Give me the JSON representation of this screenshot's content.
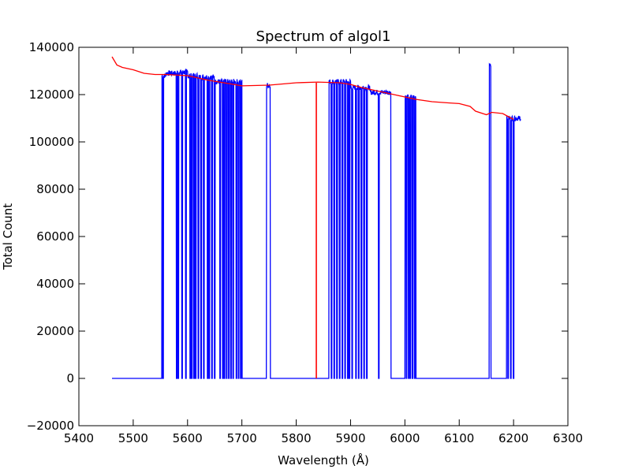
{
  "chart_data": {
    "type": "line",
    "title": "Spectrum of algol1",
    "xlabel": "Wavelength (Å)",
    "ylabel": "Total Count",
    "xlim": [
      5400,
      6300
    ],
    "ylim": [
      -20000,
      140000
    ],
    "xticks": [
      5400,
      5500,
      5600,
      5700,
      5800,
      5900,
      6000,
      6100,
      6200,
      6300
    ],
    "yticks": [
      -20000,
      0,
      20000,
      40000,
      60000,
      80000,
      100000,
      120000,
      140000
    ],
    "grid": false,
    "legend": "none",
    "colors": {
      "observed": "#0000ff",
      "fit": "#ff0000"
    },
    "series": [
      {
        "id": "observed",
        "color": "#0000ff",
        "segments": [
          [
            5461,
            5552,
            0
          ],
          [
            5552,
            5560,
            128000
          ],
          [
            5560,
            5580,
            129000
          ],
          [
            5580,
            5600,
            129500
          ],
          [
            5600,
            5620,
            128000
          ],
          [
            5620,
            5650,
            127500
          ],
          [
            5650,
            5700,
            125500
          ],
          [
            5700,
            5745,
            0
          ],
          [
            5745,
            5752,
            124000
          ],
          [
            5752,
            5860,
            0
          ],
          [
            5860,
            5900,
            125500
          ],
          [
            5900,
            5935,
            123000
          ],
          [
            5935,
            5975,
            121000
          ],
          [
            5975,
            6000,
            0
          ],
          [
            6000,
            6020,
            119000
          ],
          [
            6020,
            6155,
            0
          ],
          [
            6155,
            6158,
            133000
          ],
          [
            6158,
            6187,
            0
          ],
          [
            6187,
            6213,
            110000
          ]
        ],
        "gaps": [
          5552,
          5555,
          5580,
          5583,
          5590,
          5597,
          5605,
          5608,
          5612,
          5615,
          5620,
          5625,
          5630,
          5637,
          5640,
          5645,
          5650,
          5660,
          5665,
          5668,
          5672,
          5676,
          5680,
          5684,
          5690,
          5694,
          5698,
          5702,
          5865,
          5870,
          5875,
          5880,
          5885,
          5890,
          5895,
          5898,
          5903,
          5910,
          5915,
          5920,
          5925,
          5930,
          5952,
          5975,
          6003,
          6007,
          6010,
          6014,
          6018,
          6190,
          6195,
          6200
        ]
      },
      {
        "id": "fit",
        "color": "#ff0000",
        "x": [
          5461,
          5470,
          5480,
          5500,
          5520,
          5540,
          5560,
          5600,
          5640,
          5680,
          5700,
          5750,
          5800,
          5840,
          5880,
          5900,
          5920,
          5950,
          5980,
          6000,
          6020,
          6050,
          6080,
          6100,
          6120,
          6130,
          6150,
          6160,
          6180,
          6200
        ],
        "y": [
          136000,
          132500,
          131500,
          130500,
          129000,
          128500,
          128500,
          128000,
          126000,
          124500,
          123700,
          124000,
          125000,
          125300,
          125000,
          124300,
          123000,
          121500,
          120000,
          119000,
          118000,
          117000,
          116500,
          116200,
          115000,
          113000,
          111500,
          112500,
          112000,
          109500
        ]
      }
    ],
    "vline": {
      "x": 5837,
      "y0": 0,
      "y1": 125000,
      "color": "#ff0000"
    }
  }
}
